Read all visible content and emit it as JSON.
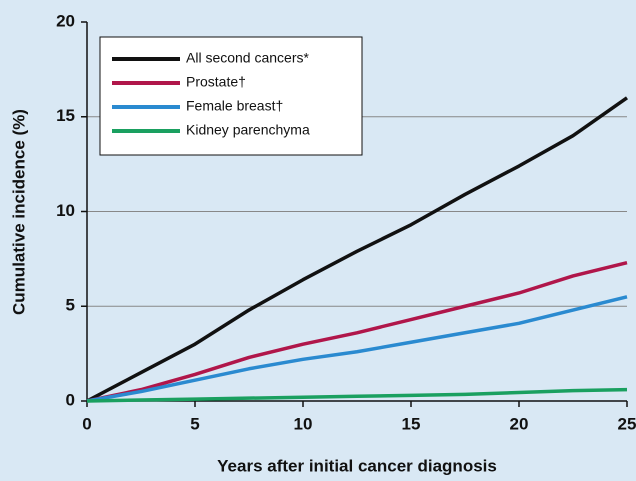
{
  "chart_data": {
    "type": "line",
    "x": [
      0,
      2.5,
      5,
      7.5,
      10,
      12.5,
      15,
      17.5,
      20,
      22.5,
      25
    ],
    "series": [
      {
        "name": "All second cancers*",
        "color": "#111111",
        "values": [
          0,
          1.5,
          3.0,
          4.8,
          6.4,
          7.9,
          9.3,
          10.9,
          12.4,
          14.0,
          16.0
        ]
      },
      {
        "name": "Prostate†",
        "color": "#b0164a",
        "values": [
          0,
          0.6,
          1.4,
          2.3,
          3.0,
          3.6,
          4.3,
          5.0,
          5.7,
          6.6,
          7.3
        ]
      },
      {
        "name": "Female breast†",
        "color": "#2a8ad0",
        "values": [
          0,
          0.5,
          1.1,
          1.7,
          2.2,
          2.6,
          3.1,
          3.6,
          4.1,
          4.8,
          5.5
        ]
      },
      {
        "name": "Kidney parenchyma",
        "color": "#1aa060",
        "values": [
          0,
          0.05,
          0.1,
          0.15,
          0.2,
          0.25,
          0.3,
          0.35,
          0.45,
          0.55,
          0.6
        ]
      }
    ],
    "xlabel": "Years after initial cancer diagnosis",
    "ylabel": "Cumulative incidence (%)",
    "xlim": [
      0,
      25
    ],
    "xticks": [
      0,
      5,
      10,
      15,
      20,
      25
    ],
    "ylim": [
      0,
      20
    ],
    "yticks": [
      0,
      5,
      10,
      15,
      20
    ],
    "grid": true,
    "legend": "upper left"
  }
}
